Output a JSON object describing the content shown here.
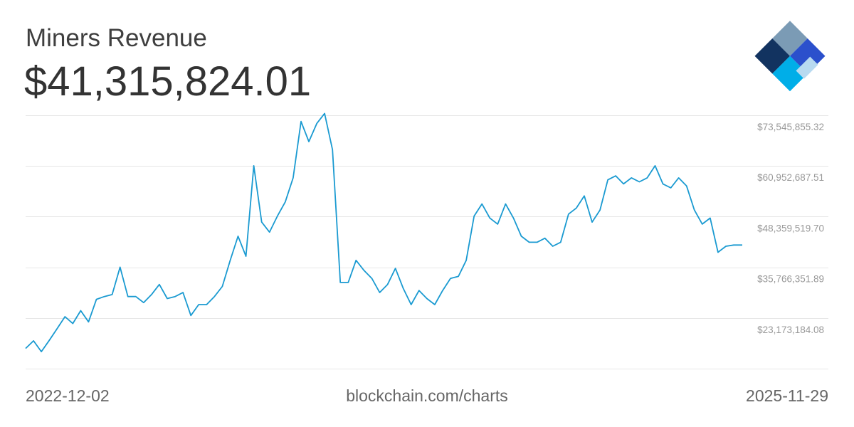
{
  "chart_data": {
    "type": "line",
    "title": "Miners Revenue",
    "current_value": "$41,315,824.01",
    "x_start_label": "2022-12-02",
    "x_end_label": "2025-11-29",
    "x_range": [
      "2022-12-02",
      "2025-11-29"
    ],
    "y_tick_labels": [
      "$73,545,855.32",
      "$60,952,687.51",
      "$48,359,519.70",
      "$35,766,351.89",
      "$23,173,184.08"
    ],
    "y_ticks": [
      73545855.32,
      60952687.51,
      48359519.7,
      35766351.89,
      23173184.08
    ],
    "ylim": [
      10580016.27,
      73545855.32
    ],
    "grid": true,
    "line_color": "#1a9ad1",
    "series": [
      {
        "points": [
          [
            "2022-12-02",
            15.6
          ],
          [
            "2022-12-14",
            17.5
          ],
          [
            "2022-12-26",
            14.8
          ],
          [
            "2023-01-07",
            17.6
          ],
          [
            "2023-01-19",
            20.5
          ],
          [
            "2023-01-31",
            23.5
          ],
          [
            "2023-02-12",
            21.8
          ],
          [
            "2023-02-24",
            25.0
          ],
          [
            "2023-03-08",
            22.2
          ],
          [
            "2023-03-20",
            27.8
          ],
          [
            "2023-04-01",
            28.5
          ],
          [
            "2023-04-13",
            29.0
          ],
          [
            "2023-04-25",
            35.8
          ],
          [
            "2023-05-07",
            28.5
          ],
          [
            "2023-05-19",
            28.5
          ],
          [
            "2023-05-31",
            27.0
          ],
          [
            "2023-06-12",
            29.0
          ],
          [
            "2023-06-24",
            31.5
          ],
          [
            "2023-07-06",
            28.0
          ],
          [
            "2023-07-18",
            28.5
          ],
          [
            "2023-07-30",
            29.5
          ],
          [
            "2023-08-11",
            23.8
          ],
          [
            "2023-08-23",
            26.5
          ],
          [
            "2023-09-04",
            26.5
          ],
          [
            "2023-09-16",
            28.5
          ],
          [
            "2023-09-28",
            31.0
          ],
          [
            "2023-10-10",
            37.5
          ],
          [
            "2023-10-22",
            43.5
          ],
          [
            "2023-11-03",
            38.5
          ],
          [
            "2023-11-15",
            61.0
          ],
          [
            "2023-11-27",
            47.0
          ],
          [
            "2023-12-09",
            44.5
          ],
          [
            "2023-12-21",
            48.5
          ],
          [
            "2024-01-02",
            52.0
          ],
          [
            "2024-01-14",
            58.0
          ],
          [
            "2024-01-26",
            72.0
          ],
          [
            "2024-02-07",
            67.0
          ],
          [
            "2024-02-19",
            71.5
          ],
          [
            "2024-03-02",
            74.0
          ],
          [
            "2024-03-14",
            65.0
          ],
          [
            "2024-03-26",
            32.0
          ],
          [
            "2024-04-07",
            32.0
          ],
          [
            "2024-04-19",
            37.5
          ],
          [
            "2024-05-01",
            35.0
          ],
          [
            "2024-05-13",
            33.0
          ],
          [
            "2024-05-25",
            29.5
          ],
          [
            "2024-06-06",
            31.5
          ],
          [
            "2024-06-18",
            35.5
          ],
          [
            "2024-06-30",
            30.5
          ],
          [
            "2024-07-12",
            26.5
          ],
          [
            "2024-07-24",
            30.0
          ],
          [
            "2024-08-05",
            28.0
          ],
          [
            "2024-08-17",
            26.5
          ],
          [
            "2024-08-29",
            30.0
          ],
          [
            "2024-09-10",
            33.0
          ],
          [
            "2024-09-22",
            33.5
          ],
          [
            "2024-10-04",
            37.5
          ],
          [
            "2024-10-16",
            48.5
          ],
          [
            "2024-10-28",
            51.5
          ],
          [
            "2024-11-09",
            48.0
          ],
          [
            "2024-11-21",
            46.5
          ],
          [
            "2024-12-03",
            51.5
          ],
          [
            "2024-12-15",
            48.0
          ],
          [
            "2024-12-27",
            43.5
          ],
          [
            "2025-01-08",
            42.0
          ],
          [
            "2025-01-20",
            42.0
          ],
          [
            "2025-02-01",
            43.0
          ],
          [
            "2025-02-13",
            41.0
          ],
          [
            "2025-02-25",
            42.0
          ],
          [
            "2025-03-09",
            49.0
          ],
          [
            "2025-03-21",
            50.5
          ],
          [
            "2025-04-02",
            53.5
          ],
          [
            "2025-04-14",
            47.0
          ],
          [
            "2025-04-26",
            50.0
          ],
          [
            "2025-05-08",
            57.5
          ],
          [
            "2025-05-20",
            58.5
          ],
          [
            "2025-06-01",
            56.5
          ],
          [
            "2025-06-13",
            58.0
          ],
          [
            "2025-06-25",
            57.0
          ],
          [
            "2025-07-07",
            58.0
          ],
          [
            "2025-07-19",
            61.0
          ],
          [
            "2025-07-31",
            56.5
          ],
          [
            "2025-08-12",
            55.5
          ],
          [
            "2025-08-24",
            58.0
          ],
          [
            "2025-09-05",
            56.0
          ],
          [
            "2025-09-17",
            50.0
          ],
          [
            "2025-09-29",
            46.5
          ],
          [
            "2025-10-11",
            48.0
          ],
          [
            "2025-10-23",
            39.5
          ],
          [
            "2025-11-04",
            41.0
          ],
          [
            "2025-11-16",
            41.3
          ],
          [
            "2025-11-29",
            41.3
          ]
        ]
      }
    ]
  },
  "footer": {
    "source": "blockchain.com/charts"
  },
  "logo": {
    "name": "blockchain-logo-icon",
    "colors": [
      "#7b9bb5",
      "#123360",
      "#2b50cc",
      "#00aee8",
      "#b8daf0"
    ]
  }
}
